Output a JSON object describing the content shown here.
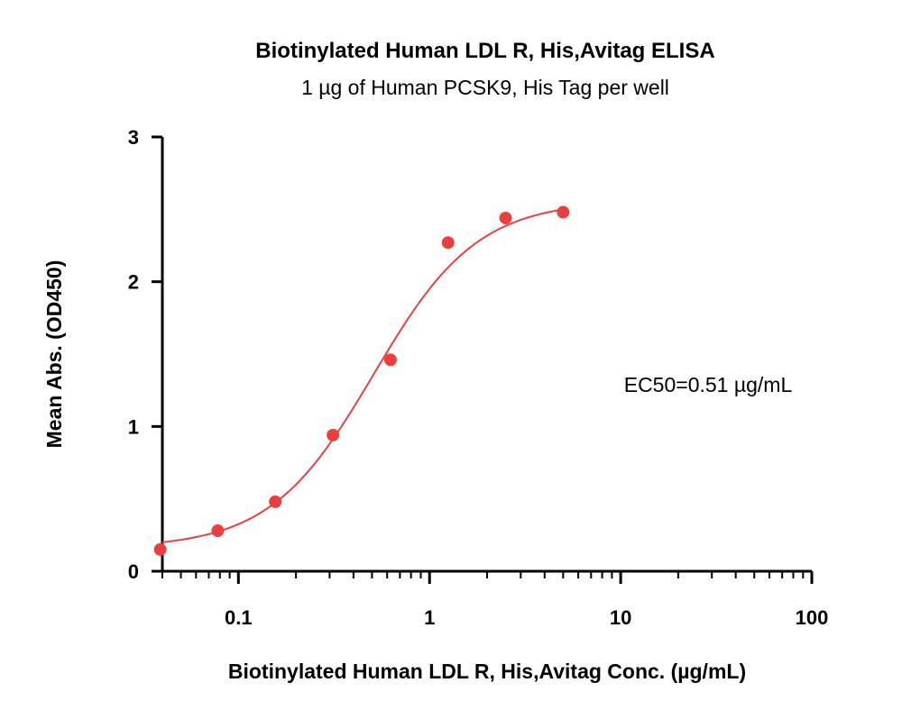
{
  "chart_data": {
    "type": "scatter",
    "title": "Biotinylated Human LDL R, His,Avitag ELISA",
    "subtitle": "1 µg of Human PCSK9, His Tag per well",
    "xlabel": "Biotinylated Human LDL R, His,Avitag Conc. (µg/mL)",
    "ylabel": "Mean Abs. (OD450)",
    "xscale": "log",
    "xlim": [
      0.04,
      100
    ],
    "ylim": [
      0,
      3
    ],
    "x_ticks": [
      0.1,
      1,
      10,
      100
    ],
    "x_tick_labels": [
      "0.1",
      "1",
      "10",
      "100"
    ],
    "y_ticks": [
      0,
      1,
      2,
      3
    ],
    "y_tick_labels": [
      "0",
      "1",
      "2",
      "3"
    ],
    "grid": false,
    "color": "#e8403f",
    "series": [
      {
        "x": [
          0.039,
          0.078,
          0.156,
          0.3125,
          0.625,
          1.25,
          2.5,
          5
        ],
        "y": [
          0.15,
          0.28,
          0.48,
          0.94,
          1.46,
          2.27,
          2.44,
          2.48
        ]
      }
    ],
    "fit_curve": {
      "model": "4PL",
      "bottom": 0.16,
      "top": 2.56,
      "ec50": 0.51,
      "hill": 1.6,
      "x_range": [
        0.04,
        5
      ]
    },
    "annotation": "EC50=0.51 µg/mL"
  }
}
